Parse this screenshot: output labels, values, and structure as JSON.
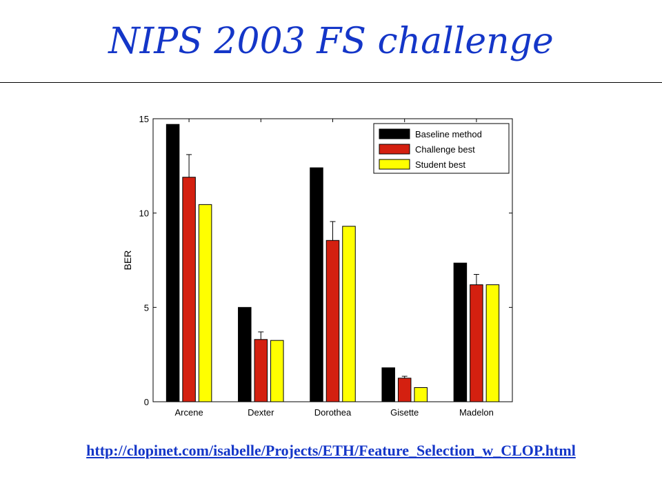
{
  "slide": {
    "title": "NIPS 2003 FS challenge",
    "url": "http://clopinet.com/isabelle/Projects/ETH/Feature_Selection_w_CLOP.html"
  },
  "colors": {
    "title": "#1436c8",
    "baseline": "#000000",
    "challenge": "#d42010",
    "student": "#ffff00"
  },
  "chart_data": {
    "type": "bar",
    "title": "",
    "xlabel": "",
    "ylabel": "BER",
    "ylim": [
      0,
      15
    ],
    "yticks": [
      0,
      5,
      10,
      15
    ],
    "grid": false,
    "legend_position": "top-right",
    "categories": [
      "Arcene",
      "Dexter",
      "Dorothea",
      "Gisette",
      "Madelon"
    ],
    "series": [
      {
        "name": "Baseline method",
        "color": "#000000",
        "values": [
          14.7,
          5.0,
          12.4,
          1.8,
          7.35
        ]
      },
      {
        "name": "Challenge best",
        "color": "#d42010",
        "values": [
          11.9,
          3.3,
          8.55,
          1.25,
          6.2
        ],
        "error_upper": [
          13.1,
          3.7,
          9.55,
          1.35,
          6.75
        ]
      },
      {
        "name": "Student best",
        "color": "#ffff00",
        "values": [
          10.45,
          3.25,
          9.3,
          0.75,
          6.2
        ]
      }
    ]
  }
}
